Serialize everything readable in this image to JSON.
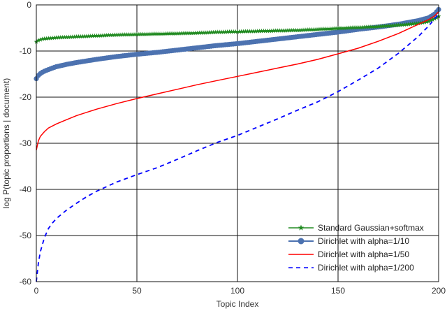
{
  "chart_data": {
    "type": "line",
    "title": "",
    "xlabel": "Topic Index",
    "ylabel": "log P(topic proportions | document)",
    "xlim": [
      0,
      200
    ],
    "ylim": [
      -60,
      0
    ],
    "xticks": [
      0,
      50,
      100,
      150,
      200
    ],
    "yticks": [
      0,
      -10,
      -20,
      -30,
      -40,
      -50,
      -60
    ],
    "grid": true,
    "legend_position": "lower-right",
    "series": [
      {
        "name": "Standard Gaussian+softmax",
        "color": "#228b22",
        "style": "solid-star-markers",
        "x": [
          0,
          1,
          3,
          5,
          10,
          20,
          30,
          40,
          50,
          60,
          70,
          80,
          90,
          100,
          110,
          120,
          130,
          140,
          150,
          160,
          170,
          180,
          190,
          195,
          198,
          200
        ],
        "y": [
          -8.0,
          -7.7,
          -7.4,
          -7.3,
          -7.1,
          -6.9,
          -6.7,
          -6.5,
          -6.4,
          -6.3,
          -6.2,
          -6.1,
          -5.9,
          -5.8,
          -5.7,
          -5.6,
          -5.5,
          -5.3,
          -5.1,
          -4.9,
          -4.7,
          -4.4,
          -4.0,
          -3.6,
          -3.0,
          -2.5
        ]
      },
      {
        "name": "Dirichlet with alpha=1/10",
        "color": "#4c72b0",
        "style": "solid-circle-markers",
        "x": [
          0,
          1,
          2,
          3,
          5,
          8,
          10,
          15,
          20,
          30,
          40,
          50,
          60,
          70,
          80,
          90,
          100,
          110,
          120,
          130,
          140,
          150,
          160,
          170,
          180,
          190,
          195,
          198,
          200
        ],
        "y": [
          -16.0,
          -15.3,
          -14.9,
          -14.6,
          -14.2,
          -13.7,
          -13.4,
          -12.9,
          -12.5,
          -11.8,
          -11.2,
          -10.7,
          -10.3,
          -9.8,
          -9.3,
          -8.8,
          -8.4,
          -7.9,
          -7.4,
          -6.9,
          -6.4,
          -5.9,
          -5.3,
          -4.8,
          -4.2,
          -3.4,
          -2.8,
          -2.0,
          -1.0
        ]
      },
      {
        "name": "Dirichlet with alpha=1/50",
        "color": "#ff0000",
        "style": "solid",
        "x": [
          0,
          1,
          2,
          4,
          6,
          10,
          15,
          20,
          30,
          40,
          50,
          60,
          70,
          80,
          90,
          100,
          110,
          120,
          130,
          140,
          150,
          160,
          170,
          180,
          190,
          195,
          198,
          200
        ],
        "y": [
          -31.5,
          -29.5,
          -28.5,
          -27.5,
          -26.7,
          -25.8,
          -24.9,
          -24.0,
          -22.6,
          -21.4,
          -20.3,
          -19.3,
          -18.3,
          -17.3,
          -16.4,
          -15.5,
          -14.6,
          -13.7,
          -12.8,
          -11.8,
          -10.6,
          -9.4,
          -7.9,
          -6.2,
          -4.2,
          -3.2,
          -2.4,
          -1.5
        ]
      },
      {
        "name": "Dirichlet with alpha=1/200",
        "color": "#0000ff",
        "style": "dashed",
        "x": [
          0,
          1,
          2,
          4,
          6,
          8,
          10,
          15,
          20,
          25,
          30,
          40,
          50,
          60,
          70,
          80,
          90,
          100,
          110,
          120,
          130,
          140,
          150,
          160,
          170,
          180,
          190,
          195,
          198,
          200
        ],
        "y": [
          -60.0,
          -56.0,
          -53.5,
          -50.5,
          -48.5,
          -47.3,
          -46.3,
          -44.5,
          -43.0,
          -41.6,
          -40.4,
          -38.4,
          -36.8,
          -35.3,
          -33.5,
          -31.6,
          -29.8,
          -28.3,
          -26.5,
          -24.7,
          -22.8,
          -21.0,
          -18.8,
          -16.3,
          -13.7,
          -10.5,
          -6.8,
          -4.6,
          -3.0,
          -2.0
        ]
      }
    ]
  }
}
